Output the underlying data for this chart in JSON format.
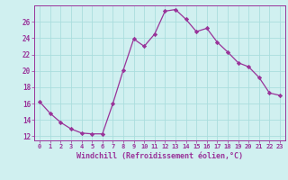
{
  "x": [
    0,
    1,
    2,
    3,
    4,
    5,
    6,
    7,
    8,
    9,
    10,
    11,
    12,
    13,
    14,
    15,
    16,
    17,
    18,
    19,
    20,
    21,
    22,
    23
  ],
  "y": [
    16.2,
    14.8,
    13.7,
    12.9,
    12.4,
    12.3,
    12.3,
    16.0,
    20.1,
    23.9,
    23.0,
    24.5,
    27.3,
    27.5,
    26.3,
    24.8,
    25.2,
    23.5,
    22.3,
    21.0,
    20.5,
    19.2,
    17.3,
    17.0
  ],
  "line_color": "#993399",
  "marker": "D",
  "marker_size": 2.2,
  "bg_color": "#d0f0f0",
  "grid_color": "#aadddd",
  "xlabel": "Windchill (Refroidissement éolien,°C)",
  "xlabel_color": "#993399",
  "tick_color": "#993399",
  "ylim": [
    11.5,
    28.0
  ],
  "yticks": [
    12,
    14,
    16,
    18,
    20,
    22,
    24,
    26
  ],
  "xlim": [
    -0.5,
    23.5
  ],
  "xtick_fontsize": 5.0,
  "ytick_fontsize": 5.5,
  "xlabel_fontsize": 6.0
}
